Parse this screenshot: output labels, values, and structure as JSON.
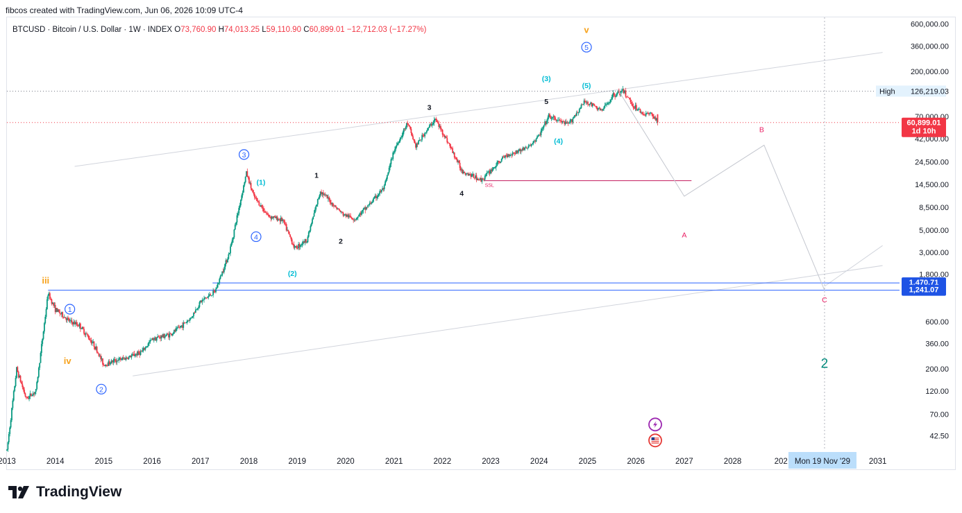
{
  "caption": "fibcos created with TradingView.com, Jun 06, 2026 10:09 UTC-4",
  "brand": {
    "name": "TradingView",
    "logo_icon": "tradingview-logo-icon"
  },
  "legend": {
    "symbol": "BTCUSD · Bitcoin / U.S. Dollar · 1W · INDEX",
    "o_label": "O",
    "o_value": "73,760.90",
    "h_label": "H",
    "h_value": "74,013.25",
    "l_label": "L",
    "l_value": "59,110.90",
    "c_label": "C",
    "c_value": "60,899.01",
    "change": "−12,712.03 (−17.27%)"
  },
  "colors": {
    "up": "#089981",
    "down": "#f23645",
    "accent_blue": "#2962ff",
    "wave_cyan": "#00bcd4",
    "wave_orange": "#f7a21b",
    "wave_pink": "#e91e63",
    "wave_teal": "#00897b"
  },
  "chart_data": {
    "type": "candlestick",
    "scale": "log",
    "x_ticks": [
      "2013",
      "2014",
      "2015",
      "2016",
      "2017",
      "2018",
      "2019",
      "2020",
      "2021",
      "2022",
      "2023",
      "2024",
      "2025",
      "2026",
      "2027",
      "2028",
      "202",
      "2031"
    ],
    "y_ticks": [
      "600,000.00",
      "360,000.00",
      "200,000.00",
      "70,000.00",
      "42,000.00",
      "24,500.00",
      "14,500.00",
      "8,500.00",
      "5,000.00",
      "3,000.00",
      "1,800.00",
      "600.00",
      "360.00",
      "200.00",
      "120.00",
      "70.00",
      "42.50"
    ],
    "ylim": [
      30,
      700000
    ],
    "price_path": [
      [
        2013.0,
        30
      ],
      [
        2013.2,
        200
      ],
      [
        2013.4,
        100
      ],
      [
        2013.6,
        120
      ],
      [
        2013.85,
        1150
      ],
      [
        2014.0,
        800
      ],
      [
        2014.3,
        600
      ],
      [
        2014.5,
        550
      ],
      [
        2014.8,
        350
      ],
      [
        2015.0,
        220
      ],
      [
        2015.2,
        240
      ],
      [
        2015.5,
        260
      ],
      [
        2015.8,
        300
      ],
      [
        2016.0,
        400
      ],
      [
        2016.4,
        450
      ],
      [
        2016.8,
        650
      ],
      [
        2017.0,
        950
      ],
      [
        2017.3,
        1200
      ],
      [
        2017.6,
        3000
      ],
      [
        2017.95,
        19000
      ],
      [
        2018.1,
        11000
      ],
      [
        2018.4,
        7000
      ],
      [
        2018.7,
        6300
      ],
      [
        2018.95,
        3300
      ],
      [
        2019.2,
        4000
      ],
      [
        2019.48,
        12500
      ],
      [
        2019.7,
        9500
      ],
      [
        2019.95,
        7200
      ],
      [
        2020.2,
        6500
      ],
      [
        2020.5,
        9200
      ],
      [
        2020.8,
        13500
      ],
      [
        2021.0,
        32000
      ],
      [
        2021.28,
        60000
      ],
      [
        2021.45,
        35000
      ],
      [
        2021.6,
        45000
      ],
      [
        2021.85,
        66000
      ],
      [
        2022.1,
        40000
      ],
      [
        2022.4,
        20000
      ],
      [
        2022.8,
        16000
      ],
      [
        2023.0,
        20000
      ],
      [
        2023.3,
        28000
      ],
      [
        2023.8,
        35000
      ],
      [
        2024.0,
        45000
      ],
      [
        2024.2,
        70000
      ],
      [
        2024.6,
        58000
      ],
      [
        2024.95,
        100000
      ],
      [
        2025.3,
        80000
      ],
      [
        2025.55,
        118000
      ],
      [
        2025.75,
        125000
      ],
      [
        2025.95,
        90000
      ],
      [
        2026.15,
        75000
      ],
      [
        2026.35,
        73760
      ],
      [
        2026.45,
        60899
      ]
    ],
    "last_price": "60,899.01",
    "last_countdown": "1d 10h",
    "high": {
      "label": "High",
      "value": "126,219.03",
      "price": 126219
    },
    "levels": [
      {
        "value": "1,470.71",
        "price": 1470.71
      },
      {
        "value": "1,241.07",
        "price": 1241.07
      }
    ],
    "ssl_level": {
      "label": "SSL",
      "price": 15800,
      "from": 2022.85,
      "to": 2027.15
    },
    "projection": [
      [
        2025.65,
        126000
      ],
      [
        2027.0,
        11000
      ],
      [
        2028.65,
        36000
      ],
      [
        2029.9,
        1241
      ]
    ],
    "crosshair_x_label": "Mon 19 Nov '29",
    "channels": [
      {
        "a": [
          2014.4,
          22000
        ],
        "b": [
          2031.1,
          310000
        ]
      },
      {
        "a": [
          2015.6,
          170
        ],
        "b": [
          2031.1,
          2200
        ]
      },
      {
        "a": [
          2029.9,
          1360
        ],
        "b": [
          2031.1,
          3500
        ]
      }
    ],
    "wave_labels": [
      {
        "text": "iii",
        "x": 2013.8,
        "price": 1550,
        "color": "orange",
        "style": "plain"
      },
      {
        "text": "iv",
        "x": 2014.25,
        "price": 240,
        "color": "orange",
        "style": "plain"
      },
      {
        "text": "v",
        "x": 2024.98,
        "price": 520000,
        "color": "orange",
        "style": "plain"
      },
      {
        "text": "1",
        "x": 2014.3,
        "price": 800,
        "color": "blue",
        "style": "circle"
      },
      {
        "text": "2",
        "x": 2014.95,
        "price": 125,
        "color": "blue",
        "style": "circle"
      },
      {
        "text": "3",
        "x": 2017.9,
        "price": 29000,
        "color": "blue",
        "style": "circle"
      },
      {
        "text": "4",
        "x": 2018.15,
        "price": 4300,
        "color": "blue",
        "style": "circle"
      },
      {
        "text": "5",
        "x": 2024.98,
        "price": 350000,
        "color": "blue",
        "style": "circle"
      },
      {
        "text": "(1)",
        "x": 2018.25,
        "price": 15300,
        "color": "cyan",
        "style": "plain"
      },
      {
        "text": "(2)",
        "x": 2018.9,
        "price": 1850,
        "color": "cyan",
        "style": "plain"
      },
      {
        "text": "(3)",
        "x": 2024.15,
        "price": 170000,
        "color": "cyan",
        "style": "plain"
      },
      {
        "text": "(4)",
        "x": 2024.4,
        "price": 40000,
        "color": "cyan",
        "style": "plain"
      },
      {
        "text": "(5)",
        "x": 2024.98,
        "price": 145000,
        "color": "cyan",
        "style": "plain"
      },
      {
        "text": "1",
        "x": 2019.4,
        "price": 18000,
        "color": "black",
        "style": "plain"
      },
      {
        "text": "2",
        "x": 2019.9,
        "price": 3900,
        "color": "black",
        "style": "plain"
      },
      {
        "text": "3",
        "x": 2021.73,
        "price": 87000,
        "color": "black",
        "style": "plain"
      },
      {
        "text": "4",
        "x": 2022.4,
        "price": 11800,
        "color": "black",
        "style": "plain"
      },
      {
        "text": "5",
        "x": 2024.15,
        "price": 100000,
        "color": "black",
        "style": "plain"
      },
      {
        "text": "A",
        "x": 2027.0,
        "price": 4500,
        "color": "pink",
        "style": "plain"
      },
      {
        "text": "B",
        "x": 2028.6,
        "price": 52000,
        "color": "pink",
        "style": "plain"
      },
      {
        "text": "C",
        "x": 2029.9,
        "price": 1000,
        "color": "pink",
        "style": "plain"
      },
      {
        "text": "2",
        "x": 2029.9,
        "price": 230,
        "color": "teal",
        "style": "large"
      }
    ],
    "events": [
      {
        "icon": "lightning-icon",
        "x": 2026.4,
        "price": 55
      },
      {
        "icon": "us-flag-icon",
        "x": 2026.4,
        "price": 38
      }
    ]
  }
}
